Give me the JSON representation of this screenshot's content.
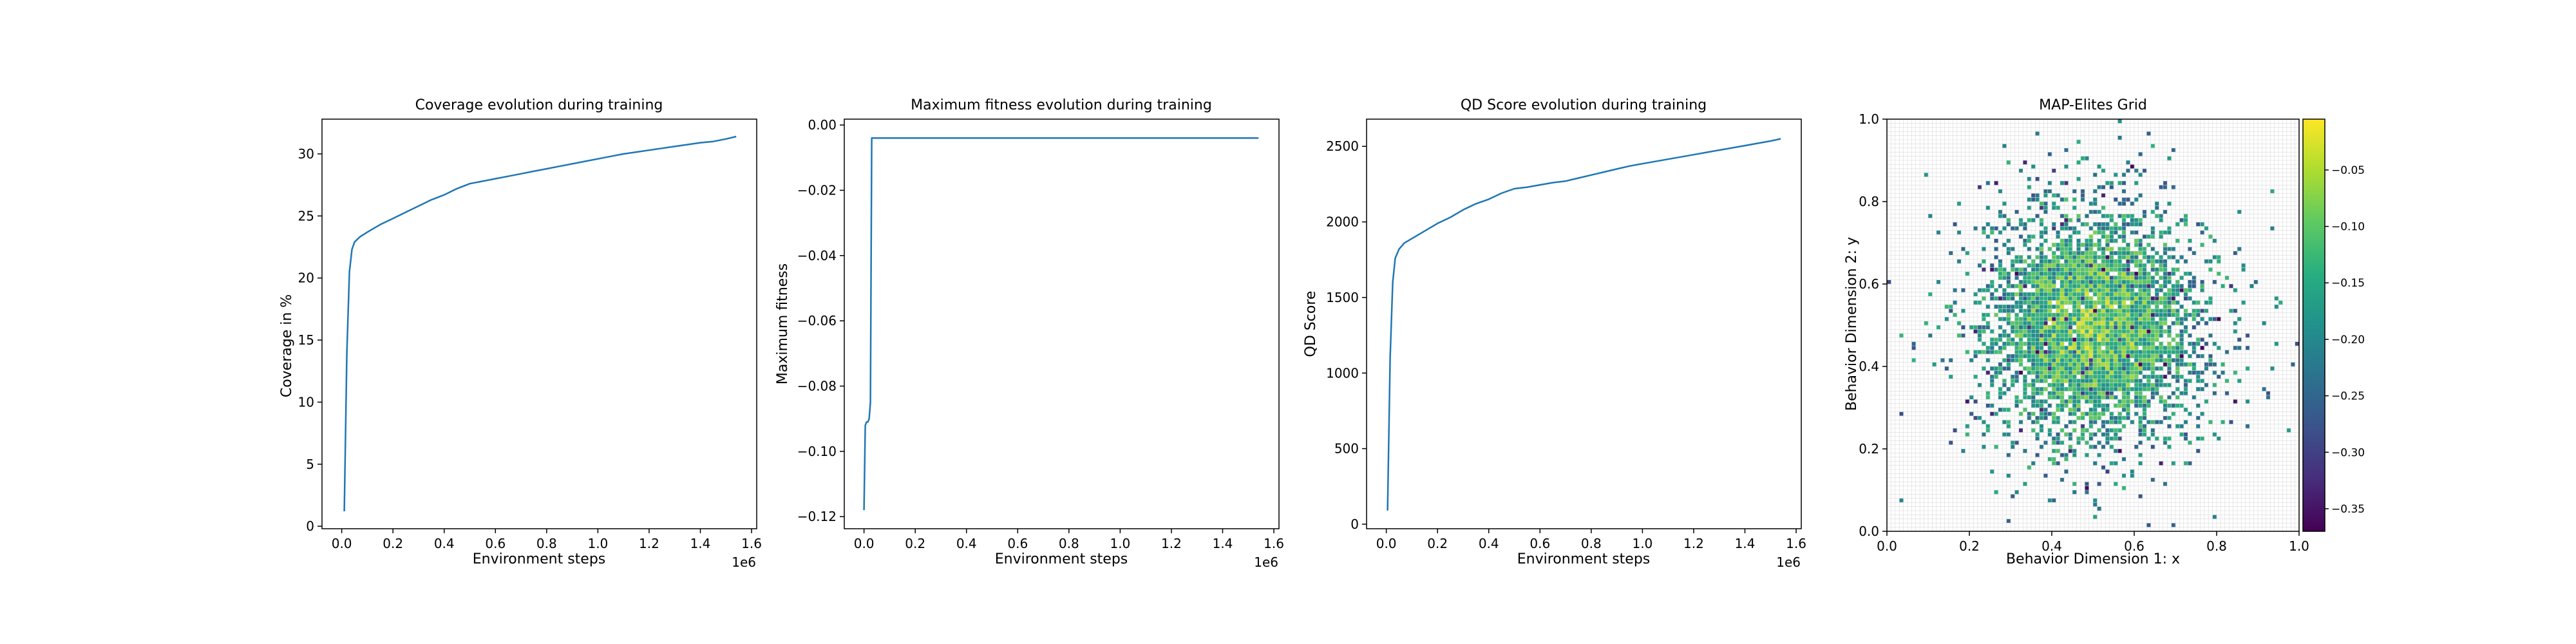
{
  "chart_data": [
    {
      "type": "line",
      "title": "Coverage evolution during training",
      "xlabel": "Environment steps",
      "ylabel": "Coverage in %",
      "x_offset_label": "1e6",
      "xlim": [
        -0.077,
        1.62
      ],
      "ylim": [
        -0.2,
        32.8
      ],
      "xticks": [
        0.0,
        0.2,
        0.4,
        0.6,
        0.8,
        1.0,
        1.2,
        1.4,
        1.6
      ],
      "xtick_labels": [
        "0.0",
        "0.2",
        "0.4",
        "0.6",
        "0.8",
        "1.0",
        "1.2",
        "1.4",
        "1.6"
      ],
      "yticks": [
        0,
        5,
        10,
        15,
        20,
        25,
        30
      ],
      "ytick_labels": [
        "0",
        "5",
        "10",
        "15",
        "20",
        "25",
        "30"
      ],
      "series": [
        {
          "x": [
            0.01,
            0.02,
            0.03,
            0.04,
            0.05,
            0.07,
            0.1,
            0.15,
            0.2,
            0.25,
            0.3,
            0.35,
            0.4,
            0.45,
            0.5,
            0.55,
            0.6,
            0.65,
            0.7,
            0.75,
            0.8,
            0.85,
            0.9,
            0.95,
            1.0,
            1.05,
            1.1,
            1.15,
            1.2,
            1.25,
            1.3,
            1.35,
            1.4,
            1.45,
            1.5,
            1.54
          ],
          "y": [
            1.2,
            14.0,
            20.5,
            22.3,
            22.9,
            23.3,
            23.7,
            24.3,
            24.8,
            25.3,
            25.8,
            26.3,
            26.7,
            27.2,
            27.6,
            27.8,
            28.0,
            28.2,
            28.4,
            28.6,
            28.8,
            29.0,
            29.2,
            29.4,
            29.6,
            29.8,
            30.0,
            30.15,
            30.3,
            30.45,
            30.6,
            30.75,
            30.9,
            31.0,
            31.2,
            31.4
          ]
        }
      ]
    },
    {
      "type": "line",
      "title": "Maximum fitness evolution during training",
      "xlabel": "Environment steps",
      "ylabel": "Maximum fitness",
      "x_offset_label": "1e6",
      "xlim": [
        -0.077,
        1.62
      ],
      "ylim": [
        -0.1237,
        0.0018
      ],
      "xticks": [
        0.0,
        0.2,
        0.4,
        0.6,
        0.8,
        1.0,
        1.2,
        1.4,
        1.6
      ],
      "xtick_labels": [
        "0.0",
        "0.2",
        "0.4",
        "0.6",
        "0.8",
        "1.0",
        "1.2",
        "1.4",
        "1.6"
      ],
      "yticks": [
        0.0,
        -0.02,
        -0.04,
        -0.06,
        -0.08,
        -0.1,
        -0.12
      ],
      "ytick_labels": [
        "0.00",
        "−0.02",
        "−0.04",
        "−0.06",
        "−0.08",
        "−0.10",
        "−0.12"
      ],
      "series": [
        {
          "x": [
            0.0,
            0.005,
            0.01,
            0.015,
            0.02,
            0.025,
            0.03,
            0.035,
            1.54
          ],
          "y": [
            -0.118,
            -0.092,
            -0.091,
            -0.091,
            -0.09,
            -0.085,
            -0.004,
            -0.004,
            -0.004
          ]
        }
      ]
    },
    {
      "type": "line",
      "title": "QD Score evolution during training",
      "xlabel": "Environment steps",
      "ylabel": "QD Score",
      "x_offset_label": "1e6",
      "xlim": [
        -0.077,
        1.62
      ],
      "ylim": [
        -30,
        2680
      ],
      "xticks": [
        0.0,
        0.2,
        0.4,
        0.6,
        0.8,
        1.0,
        1.2,
        1.4,
        1.6
      ],
      "xtick_labels": [
        "0.0",
        "0.2",
        "0.4",
        "0.6",
        "0.8",
        "1.0",
        "1.2",
        "1.4",
        "1.6"
      ],
      "yticks": [
        0,
        500,
        1000,
        1500,
        2000,
        2500
      ],
      "ytick_labels": [
        "0",
        "500",
        "1000",
        "1500",
        "2000",
        "2500"
      ],
      "series": [
        {
          "x": [
            0.005,
            0.015,
            0.025,
            0.035,
            0.05,
            0.07,
            0.1,
            0.15,
            0.2,
            0.25,
            0.3,
            0.35,
            0.4,
            0.45,
            0.5,
            0.55,
            0.6,
            0.65,
            0.7,
            0.75,
            0.8,
            0.85,
            0.9,
            0.95,
            1.0,
            1.05,
            1.1,
            1.15,
            1.2,
            1.25,
            1.3,
            1.35,
            1.4,
            1.45,
            1.5,
            1.54
          ],
          "y": [
            90,
            1100,
            1600,
            1760,
            1820,
            1860,
            1890,
            1940,
            1990,
            2030,
            2080,
            2120,
            2150,
            2190,
            2220,
            2230,
            2245,
            2260,
            2270,
            2290,
            2310,
            2330,
            2350,
            2370,
            2385,
            2400,
            2415,
            2430,
            2445,
            2460,
            2475,
            2490,
            2505,
            2520,
            2535,
            2550
          ]
        }
      ]
    },
    {
      "type": "heatmap",
      "title": "MAP-Elites Grid",
      "xlabel": "Behavior Dimension 1: x",
      "ylabel": "Behavior Dimension 2: y",
      "xlim": [
        0.0,
        1.0
      ],
      "ylim": [
        0.0,
        1.0
      ],
      "grid_resolution": [
        100,
        100
      ],
      "xticks": [
        0.0,
        0.2,
        0.4,
        0.6,
        0.8,
        1.0
      ],
      "xtick_labels": [
        "0.0",
        "0.2",
        "0.4",
        "0.6",
        "0.8",
        "1.0"
      ],
      "yticks": [
        0.0,
        0.2,
        0.4,
        0.6,
        0.8,
        1.0
      ],
      "ytick_labels": [
        "0.0",
        "0.2",
        "0.4",
        "0.6",
        "0.8",
        "1.0"
      ],
      "cluster_center": [
        0.5,
        0.5
      ],
      "cluster_sd": [
        0.15,
        0.16
      ],
      "colormap": "viridis",
      "colorbar_range": [
        -0.37,
        -0.005
      ],
      "colorbar_ticks": [
        -0.05,
        -0.1,
        -0.15,
        -0.2,
        -0.25,
        -0.3,
        -0.35
      ],
      "colorbar_tick_labels": [
        "−0.05",
        "−0.10",
        "−0.15",
        "−0.20",
        "−0.25",
        "−0.30",
        "−0.35"
      ]
    }
  ]
}
